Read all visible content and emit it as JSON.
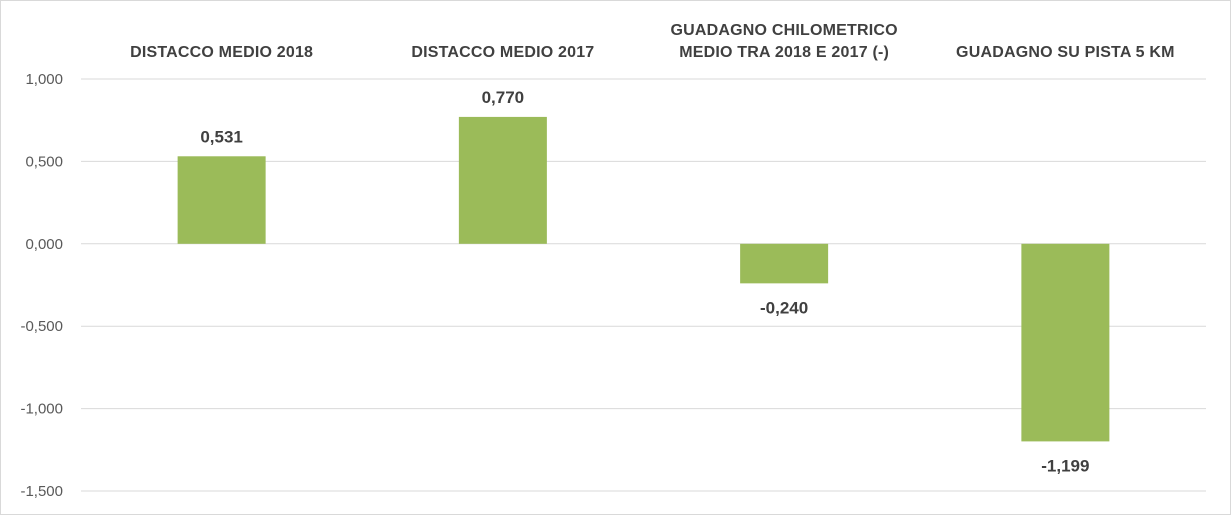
{
  "chart_data": {
    "type": "bar",
    "title": "",
    "xlabel": "",
    "ylabel": "",
    "categories": [
      [
        "DISTACCO MEDIO 2018"
      ],
      [
        "DISTACCO MEDIO 2017"
      ],
      [
        "GUADAGNO CHILOMETRICO",
        "MEDIO TRA 2018 E 2017 (-)"
      ],
      [
        "GUADAGNO SU PISTA 5 KM"
      ]
    ],
    "values": [
      0.531,
      0.77,
      -0.24,
      -1.199
    ],
    "data_labels": [
      "0,531",
      "0,770",
      "-0,240",
      "-1,199"
    ],
    "ylim": [
      -1.5,
      1.0
    ],
    "yticks": [
      1.0,
      0.5,
      0.0,
      -0.5,
      -1.0,
      -1.5
    ],
    "ytick_labels": [
      "1,000",
      "0,500",
      "0,000",
      "-0,500",
      "-1,000",
      "-1,500"
    ],
    "grid": true,
    "legend": "none",
    "colors": {
      "bar": "#9bbb59",
      "grid": "#d9d9d9",
      "text": "#404040",
      "axis_text": "#595959"
    }
  }
}
